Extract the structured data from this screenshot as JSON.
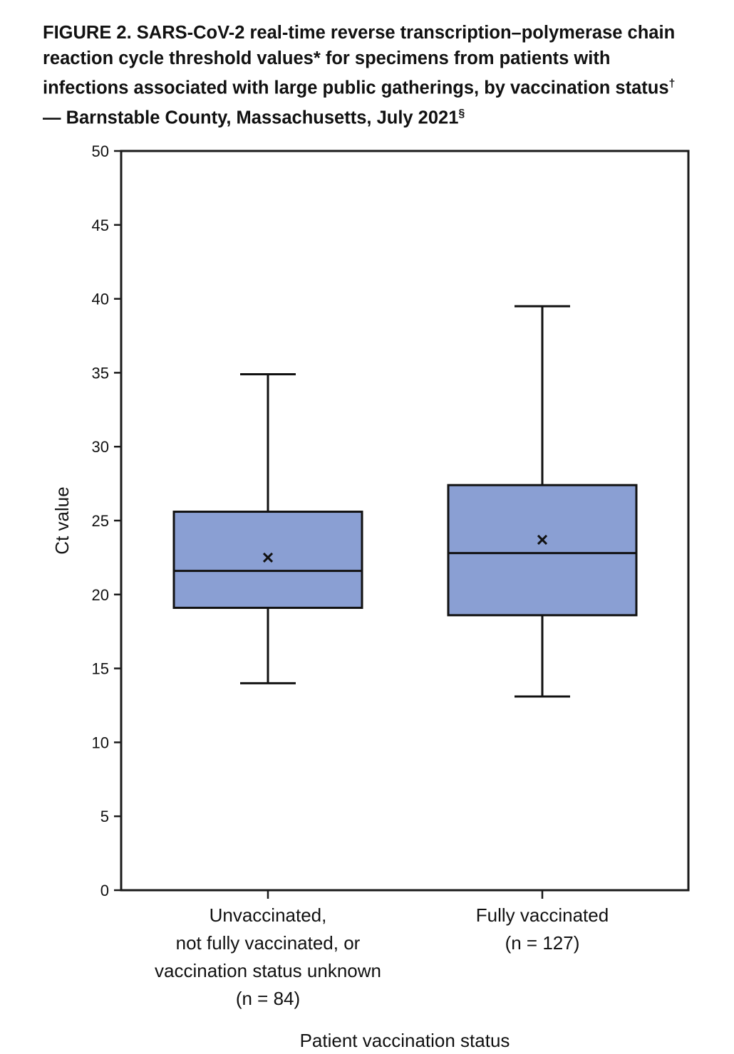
{
  "figure": {
    "title_main": "FIGURE 2. SARS-CoV-2 real-time reverse transcription–polymerase chain reaction cycle threshold values",
    "title_mark1": "*",
    "title_mid": " for specimens from patients with infections associated with large public gatherings, by vaccination status",
    "title_mark2": "†",
    "title_end": " — Barnstable County, Massachusetts, July 2021",
    "title_mark3": "§"
  },
  "chart_data": {
    "type": "box",
    "title": "FIGURE 2. SARS-CoV-2 real-time reverse transcription–polymerase chain reaction cycle threshold values* for specimens from patients with infections associated with large public gatherings, by vaccination status† — Barnstable County, Massachusetts, July 2021§",
    "xlabel": "Patient vaccination status",
    "ylabel": "Ct value",
    "ylim": [
      0,
      50
    ],
    "yticks": [
      "0",
      "5",
      "10",
      "15",
      "20",
      "25",
      "30",
      "35",
      "40",
      "45",
      "50"
    ],
    "grid": false,
    "fill_color": "#8a9fd3",
    "categories": [
      {
        "label_lines": [
          "Unvaccinated,",
          "not fully vaccinated, or",
          "vaccination status unknown",
          "(n = 84)"
        ],
        "n": 84,
        "whisker_low": 14.0,
        "q1": 19.1,
        "median": 21.6,
        "q3": 25.6,
        "whisker_high": 34.9,
        "mean": 22.5
      },
      {
        "label_lines": [
          "Fully vaccinated",
          "(n = 127)"
        ],
        "n": 127,
        "whisker_low": 13.1,
        "q1": 18.6,
        "median": 22.8,
        "q3": 27.4,
        "whisker_high": 39.5,
        "mean": 23.7
      }
    ]
  }
}
